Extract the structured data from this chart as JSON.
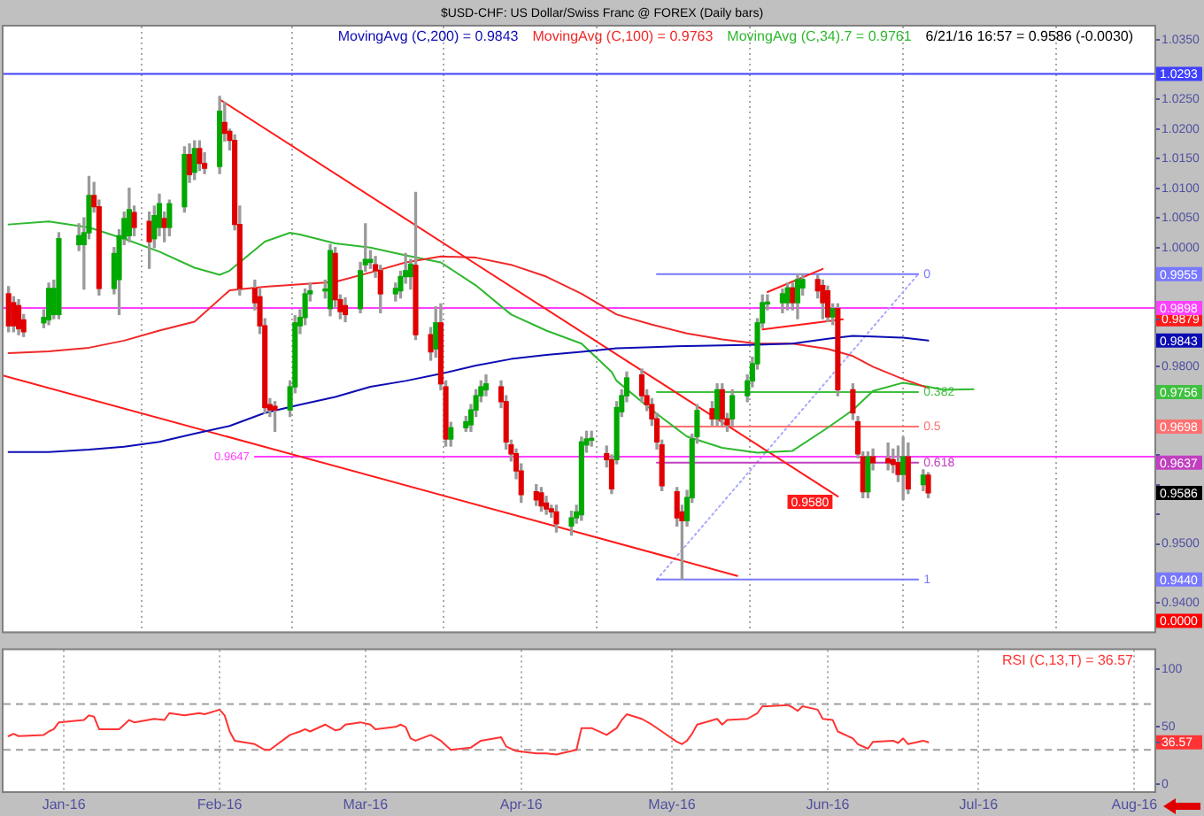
{
  "chart_data": [
    {
      "type": "candlestick",
      "title": "$USD-CHF: US Dollar/Swiss Franc @ FOREX (Daily bars)",
      "subtitle": "6/21/16 16:57 = 0.9586 (-0.0030)",
      "x": [
        "2015-12-21",
        "2015-12-22",
        "2015-12-23",
        "2015-12-24",
        "2015-12-28",
        "2015-12-29",
        "2015-12-30",
        "2015-12-31",
        "2016-01-04",
        "2016-01-05",
        "2016-01-06",
        "2016-01-07",
        "2016-01-08",
        "2016-01-11",
        "2016-01-12",
        "2016-01-13",
        "2016-01-14",
        "2016-01-15",
        "2016-01-18",
        "2016-01-19",
        "2016-01-20",
        "2016-01-21",
        "2016-01-22",
        "2016-01-25",
        "2016-01-26",
        "2016-01-27",
        "2016-01-28",
        "2016-01-29",
        "2016-02-01",
        "2016-02-02",
        "2016-02-03",
        "2016-02-04",
        "2016-02-05",
        "2016-02-08",
        "2016-02-09",
        "2016-02-10",
        "2016-02-11",
        "2016-02-12",
        "2016-02-15",
        "2016-02-16",
        "2016-02-17",
        "2016-02-18",
        "2016-02-19",
        "2016-02-22",
        "2016-02-23",
        "2016-02-24",
        "2016-02-25",
        "2016-02-26",
        "2016-02-29",
        "2016-03-01",
        "2016-03-02",
        "2016-03-03",
        "2016-03-04",
        "2016-03-07",
        "2016-03-08",
        "2016-03-09",
        "2016-03-10",
        "2016-03-11",
        "2016-03-14",
        "2016-03-15",
        "2016-03-16",
        "2016-03-17",
        "2016-03-18",
        "2016-03-21",
        "2016-03-22",
        "2016-03-23",
        "2016-03-24",
        "2016-03-25",
        "2016-03-28",
        "2016-03-29",
        "2016-03-30",
        "2016-03-31",
        "2016-04-01",
        "2016-04-04",
        "2016-04-05",
        "2016-04-06",
        "2016-04-07",
        "2016-04-08",
        "2016-04-11",
        "2016-04-12",
        "2016-04-13",
        "2016-04-14",
        "2016-04-15",
        "2016-04-18",
        "2016-04-19",
        "2016-04-20",
        "2016-04-21",
        "2016-04-22",
        "2016-04-25",
        "2016-04-26",
        "2016-04-27",
        "2016-04-28",
        "2016-04-29",
        "2016-05-02",
        "2016-05-03",
        "2016-05-04",
        "2016-05-05",
        "2016-05-06",
        "2016-05-09",
        "2016-05-10",
        "2016-05-11",
        "2016-05-12",
        "2016-05-13",
        "2016-05-16",
        "2016-05-17",
        "2016-05-18",
        "2016-05-19",
        "2016-05-20",
        "2016-05-23",
        "2016-05-24",
        "2016-05-25",
        "2016-05-26",
        "2016-05-27",
        "2016-05-30",
        "2016-05-31",
        "2016-06-01",
        "2016-06-02",
        "2016-06-03",
        "2016-06-06",
        "2016-06-07",
        "2016-06-08",
        "2016-06-09",
        "2016-06-10",
        "2016-06-13",
        "2016-06-14",
        "2016-06-15",
        "2016-06-16",
        "2016-06-17",
        "2016-06-20",
        "2016-06-21"
      ],
      "ohlc": [
        [
          0.9922,
          0.9934,
          0.9858,
          0.9868
        ],
        [
          0.9907,
          0.9917,
          0.9858,
          0.9868
        ],
        [
          0.9902,
          0.9912,
          0.9853,
          0.9863
        ],
        [
          0.9878,
          0.9887,
          0.985,
          0.9858
        ],
        [
          0.9873,
          0.9895,
          0.9865,
          0.9882
        ],
        [
          0.9878,
          0.994,
          0.987,
          0.9931
        ],
        [
          0.9887,
          0.9945,
          0.988,
          0.9931
        ],
        [
          0.9887,
          1.0025,
          0.988,
          1.0015
        ],
        [
          1.0005,
          1.004,
          0.9995,
          1.002
        ],
        [
          1.0005,
          1.005,
          0.993,
          1.0025
        ],
        [
          1.0025,
          1.012,
          1.0015,
          1.0088
        ],
        [
          1.0088,
          1.011,
          1.006,
          1.0069
        ],
        [
          1.0069,
          1.008,
          0.992,
          0.9931
        ],
        [
          0.9931,
          1.0,
          0.9922,
          0.999
        ],
        [
          0.9946,
          1.003,
          0.9887,
          1.002
        ],
        [
          1.0015,
          1.006,
          1.0005,
          1.0049
        ],
        [
          1.002,
          1.01,
          1.001,
          1.0064
        ],
        [
          1.0059,
          1.007,
          1.002,
          1.0034
        ],
        [
          1.0044,
          1.006,
          0.9965,
          1.001
        ],
        [
          1.0015,
          1.007,
          1.0,
          1.0054
        ],
        [
          1.0034,
          1.009,
          1.002,
          1.0074
        ],
        [
          1.0049,
          1.006,
          1.001,
          1.0034
        ],
        [
          1.0034,
          1.008,
          1.002,
          1.0074
        ],
        [
          1.0069,
          1.017,
          1.006,
          1.0157
        ],
        [
          1.0157,
          1.0175,
          1.011,
          1.0123
        ],
        [
          1.0127,
          1.018,
          1.0115,
          1.0167
        ],
        [
          1.0167,
          1.018,
          1.013,
          1.0142
        ],
        [
          1.0142,
          1.016,
          1.0125,
          1.0134
        ],
        [
          1.0137,
          1.0255,
          1.0125,
          1.023
        ],
        [
          1.0211,
          1.0245,
          1.018,
          1.0193
        ],
        [
          1.0196,
          1.02,
          1.0165,
          1.0181
        ],
        [
          1.0181,
          1.019,
          1.003,
          1.0039
        ],
        [
          1.0039,
          1.007,
          0.992,
          0.9931
        ],
        [
          0.9931,
          0.9945,
          0.9895,
          0.9907
        ],
        [
          0.9917,
          0.993,
          0.9855,
          0.9868
        ],
        [
          0.9868,
          0.988,
          0.972,
          0.973
        ],
        [
          0.9735,
          0.9745,
          0.9715,
          0.9726
        ],
        [
          0.9732,
          0.974,
          0.969,
          0.9726
        ],
        [
          0.9726,
          0.9775,
          0.9715,
          0.9765
        ],
        [
          0.9765,
          0.9885,
          0.9755,
          0.9873
        ],
        [
          0.9868,
          0.9895,
          0.9855,
          0.9882
        ],
        [
          0.9882,
          0.993,
          0.987,
          0.9922
        ],
        [
          0.9922,
          0.994,
          0.991,
          0.9927
        ],
        [
          0.9927,
          0.9945,
          0.9915,
          0.9929
        ],
        [
          0.9897,
          1.0005,
          0.9885,
          0.9995
        ],
        [
          0.999,
          1.0,
          0.99,
          0.9912
        ],
        [
          0.9912,
          0.992,
          0.988,
          0.9892
        ],
        [
          0.9902,
          0.9915,
          0.9875,
          0.9887
        ],
        [
          0.9897,
          0.9975,
          0.989,
          0.9961
        ],
        [
          0.9971,
          1.004,
          0.996,
          0.998
        ],
        [
          0.9975,
          0.9995,
          0.9965,
          0.998
        ],
        [
          0.9971,
          0.9985,
          0.995,
          0.9961
        ],
        [
          0.9961,
          0.997,
          0.989,
          0.9922
        ],
        [
          0.9922,
          0.994,
          0.991,
          0.9931
        ],
        [
          0.9927,
          0.996,
          0.9915,
          0.9951
        ],
        [
          0.9951,
          0.999,
          0.994,
          0.9961
        ],
        [
          0.9951,
          0.998,
          0.993,
          0.9972
        ],
        [
          0.997,
          1.0093,
          0.9845,
          0.9853
        ],
        [
          0.9853,
          0.9865,
          0.981,
          0.9824
        ],
        [
          0.9829,
          0.99,
          0.9815,
          0.9873
        ],
        [
          0.9873,
          0.9905,
          0.976,
          0.977
        ],
        [
          0.9765,
          0.9775,
          0.9665,
          0.9677
        ],
        [
          0.9677,
          0.9705,
          0.9665,
          0.9696
        ],
        [
          0.9696,
          0.9715,
          0.969,
          0.9706
        ],
        [
          0.9701,
          0.9735,
          0.969,
          0.9726
        ],
        [
          0.9726,
          0.976,
          0.9715,
          0.975
        ],
        [
          0.975,
          0.9775,
          0.974,
          0.9765
        ],
        [
          0.976,
          0.9785,
          0.975,
          0.977
        ],
        [
          0.9765,
          0.9775,
          0.973,
          0.974
        ],
        [
          0.974,
          0.975,
          0.966,
          0.9672
        ],
        [
          0.9667,
          0.9675,
          0.964,
          0.9652
        ],
        [
          0.9652,
          0.966,
          0.961,
          0.9623
        ],
        [
          0.9623,
          0.9635,
          0.957,
          0.9583
        ],
        [
          0.9588,
          0.96,
          0.9565,
          0.9574
        ],
        [
          0.9586,
          0.9595,
          0.9555,
          0.9564
        ],
        [
          0.9569,
          0.958,
          0.955,
          0.9559
        ],
        [
          0.9559,
          0.9565,
          0.9545,
          0.9554
        ],
        [
          0.9554,
          0.9565,
          0.952,
          0.9534
        ],
        [
          0.953,
          0.9555,
          0.9515,
          0.9544
        ],
        [
          0.9544,
          0.9565,
          0.9535,
          0.9554
        ],
        [
          0.9549,
          0.968,
          0.954,
          0.9672
        ],
        [
          0.9667,
          0.969,
          0.9655,
          0.9677
        ],
        [
          0.9675,
          0.969,
          0.9665,
          0.9677
        ],
        [
          0.9652,
          0.9665,
          0.963,
          0.9642
        ],
        [
          0.9642,
          0.965,
          0.9585,
          0.9593
        ],
        [
          0.9642,
          0.974,
          0.9635,
          0.973
        ],
        [
          0.9723,
          0.976,
          0.9715,
          0.975
        ],
        [
          0.975,
          0.979,
          0.974,
          0.978
        ],
        [
          0.9785,
          0.9795,
          0.974,
          0.975
        ],
        [
          0.975,
          0.976,
          0.9725,
          0.9735
        ],
        [
          0.9735,
          0.9745,
          0.97,
          0.9711
        ],
        [
          0.9711,
          0.972,
          0.966,
          0.9672
        ],
        [
          0.9667,
          0.9675,
          0.959,
          0.9598
        ],
        [
          0.9588,
          0.9595,
          0.953,
          0.9544
        ],
        [
          0.9554,
          0.9565,
          0.944,
          0.9539
        ],
        [
          0.9539,
          0.959,
          0.953,
          0.9578
        ],
        [
          0.9578,
          0.9685,
          0.957,
          0.9677
        ],
        [
          0.9681,
          0.9735,
          0.967,
          0.9725
        ],
        [
          0.9728,
          0.974,
          0.97,
          0.9711
        ],
        [
          0.9711,
          0.977,
          0.97,
          0.976
        ],
        [
          0.976,
          0.977,
          0.97,
          0.9711
        ],
        [
          0.9711,
          0.972,
          0.969,
          0.9701
        ],
        [
          0.9711,
          0.976,
          0.97,
          0.975
        ],
        [
          0.975,
          0.9785,
          0.974,
          0.9775
        ],
        [
          0.9775,
          0.9815,
          0.9765,
          0.9804
        ],
        [
          0.9804,
          0.988,
          0.9795,
          0.9873
        ],
        [
          0.9873,
          0.992,
          0.9865,
          0.9907
        ],
        [
          0.9905,
          0.992,
          0.9895,
          0.9907
        ],
        [
          0.9907,
          0.993,
          0.989,
          0.9922
        ],
        [
          0.9907,
          0.994,
          0.9895,
          0.9932
        ],
        [
          0.9932,
          0.994,
          0.9895,
          0.9907
        ],
        [
          0.9907,
          0.9955,
          0.988,
          0.9946
        ],
        [
          0.9932,
          0.9955,
          0.992,
          0.9946
        ],
        [
          0.9946,
          0.9953,
          0.9915,
          0.9927
        ],
        [
          0.9936,
          0.9945,
          0.988,
          0.9907
        ],
        [
          0.9927,
          0.9935,
          0.9875,
          0.9883
        ],
        [
          0.9883,
          0.9905,
          0.987,
          0.9897
        ],
        [
          0.9897,
          0.9905,
          0.975,
          0.976
        ],
        [
          0.976,
          0.977,
          0.971,
          0.9721
        ],
        [
          0.9706,
          0.9715,
          0.9645,
          0.9652
        ],
        [
          0.9647,
          0.9655,
          0.9578,
          0.9588
        ],
        [
          0.9588,
          0.9655,
          0.9578,
          0.9647
        ],
        [
          0.9647,
          0.966,
          0.9625,
          0.9637
        ],
        [
          0.9644,
          0.967,
          0.9625,
          0.9637
        ],
        [
          0.9642,
          0.966,
          0.962,
          0.9634
        ],
        [
          0.9637,
          0.9665,
          0.9605,
          0.9617
        ],
        [
          0.9617,
          0.968,
          0.9575,
          0.9647
        ],
        [
          0.9647,
          0.967,
          0.9585,
          0.9593
        ],
        [
          0.96,
          0.9625,
          0.959,
          0.9616
        ],
        [
          0.9616,
          0.962,
          0.9578,
          0.9586
        ]
      ],
      "series": [
        {
          "type": "line",
          "name": "MovingAvg (C,200) = 0.9843",
          "color": "#0c0cb4",
          "x": [
            "2015-12-21",
            "2015-12-29",
            "2016-01-06",
            "2016-01-13",
            "2016-01-20",
            "2016-01-27",
            "2016-02-03",
            "2016-02-10",
            "2016-02-17",
            "2016-02-24",
            "2016-03-02",
            "2016-03-09",
            "2016-03-16",
            "2016-03-23",
            "2016-03-30",
            "2016-04-06",
            "2016-04-13",
            "2016-04-20",
            "2016-04-27",
            "2016-05-04",
            "2016-05-11",
            "2016-05-18",
            "2016-05-25",
            "2016-06-01",
            "2016-06-06",
            "2016-06-10",
            "2016-06-16",
            "2016-06-21"
          ],
          "values": [
            0.9655,
            0.9655,
            0.9659,
            0.9664,
            0.9672,
            0.9686,
            0.9699,
            0.9721,
            0.9735,
            0.9748,
            0.9765,
            0.9775,
            0.9787,
            0.9801,
            0.9812,
            0.9819,
            0.9824,
            0.983,
            0.9832,
            0.9834,
            0.9835,
            0.9836,
            0.9838,
            0.9846,
            0.9851,
            0.985,
            0.9848,
            0.9843
          ]
        },
        {
          "type": "line",
          "name": "MovingAvg (C,100) = 0.9763",
          "color": "#f02828",
          "x": [
            "2015-12-21",
            "2015-12-29",
            "2016-01-06",
            "2016-01-13",
            "2016-01-20",
            "2016-01-27",
            "2016-02-03",
            "2016-02-10",
            "2016-02-17",
            "2016-02-24",
            "2016-03-02",
            "2016-03-09",
            "2016-03-16",
            "2016-03-23",
            "2016-03-30",
            "2016-04-06",
            "2016-04-13",
            "2016-04-20",
            "2016-04-27",
            "2016-05-04",
            "2016-05-11",
            "2016-05-18",
            "2016-05-25",
            "2016-06-01",
            "2016-06-06",
            "2016-06-10",
            "2016-06-16",
            "2016-06-21"
          ],
          "values": [
            0.9822,
            0.9825,
            0.9831,
            0.9843,
            0.986,
            0.9875,
            0.9928,
            0.9934,
            0.9938,
            0.9942,
            0.9958,
            0.9975,
            0.9985,
            0.9983,
            0.9971,
            0.9951,
            0.9922,
            0.9887,
            0.987,
            0.9855,
            0.9845,
            0.9838,
            0.9838,
            0.9829,
            0.9817,
            0.9799,
            0.9778,
            0.9763
          ]
        },
        {
          "type": "line",
          "name": "MovingAvg (C,34).7 = 0.9761",
          "color": "#2eb82e",
          "x": [
            "2015-12-21",
            "2015-12-29",
            "2016-01-06",
            "2016-01-13",
            "2016-01-20",
            "2016-01-27",
            "2016-02-01",
            "2016-02-03",
            "2016-02-10",
            "2016-02-15",
            "2016-02-17",
            "2016-02-24",
            "2016-03-02",
            "2016-03-09",
            "2016-03-16",
            "2016-03-23",
            "2016-03-30",
            "2016-04-06",
            "2016-04-13",
            "2016-04-19",
            "2016-04-20",
            "2016-04-27",
            "2016-05-04",
            "2016-05-11",
            "2016-05-18",
            "2016-05-25",
            "2016-06-01",
            "2016-06-06",
            "2016-06-10",
            "2016-06-16",
            "2016-06-21",
            "2016-06-24",
            "2016-06-30"
          ],
          "values": [
            1.0039,
            1.0044,
            1.0034,
            1.0015,
            0.9993,
            0.9966,
            0.9954,
            0.9961,
            1.001,
            1.0025,
            1.0022,
            1.0007,
            1,
            0.9987,
            0.9975,
            0.9936,
            0.9887,
            0.986,
            0.9838,
            0.979,
            0.9775,
            0.9726,
            0.9681,
            0.9662,
            0.9654,
            0.9657,
            0.9696,
            0.9726,
            0.9758,
            0.9772,
            0.9765,
            0.976,
            0.9761
          ]
        },
        {
          "type": "line",
          "color": "#ff1a1a",
          "x": [
            "2016-02-01",
            "2016-06-03"
          ],
          "values": [
            1.025,
            0.958
          ],
          "value_labels": [
            null,
            "0.9580"
          ]
        },
        {
          "type": "line",
          "color": "#ff1a1a",
          "x": [
            "2015-12-20",
            "2016-05-14"
          ],
          "values": [
            0.9784,
            0.9446
          ]
        },
        {
          "type": "line",
          "color": "#ff1a1a",
          "x": [
            "2016-05-20",
            "2016-05-31"
          ],
          "values": [
            0.9925,
            0.9964
          ]
        },
        {
          "type": "line",
          "color": "#ff1a1a",
          "x": [
            "2016-05-19",
            "2016-06-04"
          ],
          "values": [
            0.9862,
            0.9879
          ]
        },
        {
          "type": "line",
          "color": "#ff40ff",
          "x": [
            "2016-02-08",
            "2016-08-05"
          ],
          "values": [
            0.9647,
            0.9647
          ],
          "value_labels": [
            "0.9647",
            null
          ]
        },
        {
          "type": "line",
          "name": "0",
          "color": "#7878ff",
          "x": [
            "2016-04-28",
            "2016-06-19"
          ],
          "values": [
            0.9955,
            0.9955
          ]
        },
        {
          "type": "line",
          "name": "0.382",
          "color": "#40c040",
          "x": [
            "2016-04-28",
            "2016-06-19"
          ],
          "values": [
            0.9756,
            0.9756
          ]
        },
        {
          "type": "line",
          "name": "0.5",
          "color": "#ff7070",
          "x": [
            "2016-04-28",
            "2016-06-19"
          ],
          "values": [
            0.9698,
            0.9698
          ]
        },
        {
          "type": "line",
          "name": "0.618",
          "color": "#c040c0",
          "x": [
            "2016-04-28",
            "2016-06-19"
          ],
          "values": [
            0.9637,
            0.9637
          ]
        },
        {
          "type": "line",
          "name": "1",
          "color": "#7878ff",
          "x": [
            "2016-04-28",
            "2016-06-19"
          ],
          "values": [
            0.944,
            0.944
          ]
        },
        {
          "type": "line",
          "color": "#a8a8ff",
          "line_style": "dotted",
          "x": [
            "2016-04-28",
            "2016-06-19"
          ],
          "values": [
            0.944,
            0.9955
          ]
        }
      ],
      "ref_lines": [
        {
          "axis": "y",
          "value": 1.0293,
          "label": "1.0293",
          "color": "#4040ff"
        },
        {
          "axis": "y",
          "value": 0.9898,
          "label": "0.9898",
          "color": "#ff40ff"
        }
      ],
      "annotations": [
        {
          "text": "0.9955",
          "y": 0.9955
        },
        {
          "text": "0.9843",
          "y": 0.9843
        },
        {
          "text": "0.9756",
          "y": 0.9756
        },
        {
          "text": "0.9698",
          "y": 0.9698
        },
        {
          "text": "0.9637",
          "y": 0.9637
        },
        {
          "text": "0.9586",
          "y": 0.9586
        },
        {
          "text": "0.9440",
          "y": 0.944
        },
        "0.0000"
      ],
      "xlim": [
        "2015-12-20",
        "2016-08-05"
      ],
      "xticks": [
        {
          "value": "2016-01-01",
          "label": null
        },
        {
          "value": "2016-02-01",
          "label": null
        },
        {
          "value": "2016-03-01",
          "label": null
        },
        {
          "value": "2016-04-01",
          "label": null
        },
        {
          "value": "2016-05-01",
          "label": null
        },
        {
          "value": "2016-06-01",
          "label": null
        },
        {
          "value": "2016-07-01",
          "label": null
        },
        {
          "value": "2016-08-01",
          "label": null
        }
      ],
      "ylim": [
        0.9352,
        1.0373
      ],
      "yticks": [
        {
          "value": 1.035,
          "label": "1.0350"
        },
        {
          "value": 1.03,
          "label": null
        },
        {
          "value": 1.025,
          "label": "1.0250"
        },
        {
          "value": 1.02,
          "label": "1.0200"
        },
        {
          "value": 1.015,
          "label": "1.0150"
        },
        {
          "value": 1.01,
          "label": "1.0100"
        },
        {
          "value": 1.005,
          "label": "1.0050"
        },
        {
          "value": 1,
          "label": "1.0000"
        },
        {
          "value": 0.995,
          "label": null
        },
        {
          "value": 0.99,
          "label": null
        },
        {
          "value": 0.9879,
          "label": "0.9879"
        },
        {
          "value": 0.985,
          "label": null
        },
        {
          "value": 0.98,
          "label": "0.9800"
        },
        {
          "value": 0.975,
          "label": null
        },
        {
          "value": 0.97,
          "label": null
        },
        {
          "value": 0.965,
          "label": null
        },
        {
          "value": 0.96,
          "label": null
        },
        {
          "value": 0.955,
          "label": null
        },
        {
          "value": 0.95,
          "label": "0.9500"
        },
        {
          "value": 0.945,
          "label": null
        },
        {
          "value": 0.94,
          "label": "0.9400"
        }
      ],
      "grid": "x",
      "legend": "top right",
      "tick_labels": "y"
    },
    {
      "type": "line",
      "x": [
        "2015-12-21",
        "2015-12-22",
        "2015-12-23",
        "2015-12-28",
        "2015-12-29",
        "2015-12-30",
        "2015-12-31",
        "2016-01-05",
        "2016-01-06",
        "2016-01-07",
        "2016-01-08",
        "2016-01-12",
        "2016-01-13",
        "2016-01-14",
        "2016-01-15",
        "2016-01-19",
        "2016-01-21",
        "2016-01-22",
        "2016-01-25",
        "2016-01-28",
        "2016-01-29",
        "2016-02-01",
        "2016-02-02",
        "2016-02-03",
        "2016-02-04",
        "2016-02-08",
        "2016-02-10",
        "2016-02-11",
        "2016-02-15",
        "2016-02-17",
        "2016-02-18",
        "2016-02-19",
        "2016-02-22",
        "2016-02-24",
        "2016-02-25",
        "2016-02-26",
        "2016-02-29",
        "2016-03-02",
        "2016-03-03",
        "2016-03-07",
        "2016-03-08",
        "2016-03-09",
        "2016-03-10",
        "2016-03-11",
        "2016-03-14",
        "2016-03-16",
        "2016-03-18",
        "2016-03-22",
        "2016-03-24",
        "2016-03-28",
        "2016-03-29",
        "2016-03-31",
        "2016-04-04",
        "2016-04-06",
        "2016-04-08",
        "2016-04-12",
        "2016-04-13",
        "2016-04-15",
        "2016-04-18",
        "2016-04-20",
        "2016-04-21",
        "2016-04-22",
        "2016-04-25",
        "2016-04-27",
        "2016-04-29",
        "2016-05-02",
        "2016-05-03",
        "2016-05-04",
        "2016-05-05",
        "2016-05-06",
        "2016-05-10",
        "2016-05-11",
        "2016-05-12",
        "2016-05-16",
        "2016-05-18",
        "2016-05-19",
        "2016-05-20",
        "2016-05-24",
        "2016-05-25",
        "2016-05-26",
        "2016-05-27",
        "2016-05-30",
        "2016-05-31",
        "2016-06-02",
        "2016-06-03",
        "2016-06-06",
        "2016-06-07",
        "2016-06-09",
        "2016-06-10",
        "2016-06-14",
        "2016-06-15",
        "2016-06-16",
        "2016-06-17",
        "2016-06-20",
        "2016-06-21"
      ],
      "series": [
        {
          "name": "RSI (C,13,T) = 36.57",
          "color": "#ff3333",
          "values": [
            42,
            44,
            42,
            43,
            46,
            48,
            54,
            56,
            60,
            59,
            48,
            48,
            52,
            56,
            54,
            57,
            56,
            62,
            60,
            62,
            61,
            65,
            60,
            46,
            38,
            35,
            30,
            30,
            43,
            46,
            48,
            46,
            52,
            47,
            48,
            52,
            54,
            52,
            48,
            50,
            52,
            50,
            40,
            38,
            43,
            38,
            30,
            32,
            38,
            41,
            33,
            29,
            27,
            27,
            26,
            30,
            49,
            49,
            43,
            49,
            56,
            61,
            57,
            52,
            46,
            37,
            35,
            38,
            44,
            52,
            57,
            52,
            56,
            57,
            62,
            68,
            68,
            69,
            67,
            64,
            68,
            65,
            57,
            56,
            46,
            40,
            35,
            31,
            37,
            38,
            36,
            40,
            35,
            38,
            36.57
          ]
        }
      ],
      "ref_lines": [
        {
          "axis": "y",
          "value": 70,
          "color": "#a0a0a0",
          "line_style": "dashed"
        },
        {
          "axis": "y",
          "value": 30,
          "color": "#a0a0a0",
          "line_style": "dashed"
        }
      ],
      "xlim": [
        "2015-12-20",
        "2016-08-05"
      ],
      "xticks": [
        {
          "value": "2016-01-01",
          "label": "Jan-16"
        },
        {
          "value": "2016-02-01",
          "label": "Feb-16"
        },
        {
          "value": "2016-03-01",
          "label": "Mar-16"
        },
        {
          "value": "2016-04-01",
          "label": "Apr-16"
        },
        {
          "value": "2016-05-01",
          "label": "May-16"
        },
        {
          "value": "2016-06-01",
          "label": "Jun-16"
        },
        {
          "value": "2016-07-01",
          "label": "Jul-16"
        },
        {
          "value": "2016-08-01",
          "label": "Aug-16"
        }
      ],
      "ylim": [
        -6,
        117
      ],
      "yticks": [
        0,
        {
          "value": 36.57,
          "label": "36.57"
        },
        50,
        100
      ],
      "grid": "x",
      "legend": "top right"
    }
  ]
}
